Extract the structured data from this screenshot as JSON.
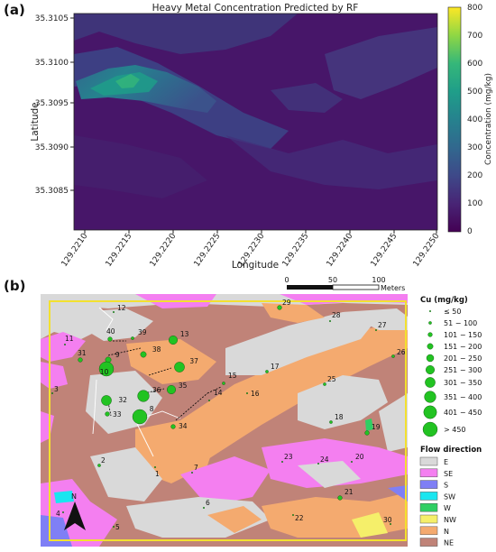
{
  "panel_a": {
    "label": "(a)",
    "title": "Heavy Metal Concentration Predicted by RF",
    "xlabel": "Longitude",
    "ylabel": "Latitude",
    "colorbar_label": "Concentration (mg/kg)",
    "x_ticks": [
      "129.2210",
      "129.2215",
      "129.2220",
      "129.2225",
      "129.2230",
      "129.2235",
      "129.2240",
      "129.2245",
      "129.2250"
    ],
    "y_ticks": [
      "35.3105",
      "35.3100",
      "35.3095",
      "35.3090",
      "35.3085"
    ],
    "colorbar_ticks": [
      "800",
      "700",
      "600",
      "500",
      "400",
      "300",
      "200",
      "100",
      "0"
    ],
    "colorbar_range": [
      0,
      800
    ],
    "colormap": "viridis"
  },
  "panel_b": {
    "label": "(b)",
    "scalebar": {
      "ticks": [
        "0",
        "50",
        "100"
      ],
      "unit": "Meters"
    },
    "north_label": "N",
    "cu_legend": {
      "title": "Cu (mg/kg)",
      "items": [
        "≤ 50",
        "51 − 100",
        "101 − 150",
        "151 − 200",
        "201 − 250",
        "251 − 300",
        "301 − 350",
        "351 − 400",
        "401 − 450",
        "> 450"
      ]
    },
    "flow_legend": {
      "title": "Flow direction",
      "items": [
        {
          "label": "E",
          "color": "#d9d9d9"
        },
        {
          "label": "SE",
          "color": "#f47ff0"
        },
        {
          "label": "S",
          "color": "#7f7ff5"
        },
        {
          "label": "SW",
          "color": "#19e6f0"
        },
        {
          "label": "W",
          "color": "#2fcf63"
        },
        {
          "label": "NW",
          "color": "#f5ef6a"
        },
        {
          "label": "N",
          "color": "#f4aa6f"
        },
        {
          "label": "NE",
          "color": "#c08378"
        }
      ]
    },
    "points": [
      {
        "id": "1",
        "cls": 0
      },
      {
        "id": "2",
        "cls": 1
      },
      {
        "id": "3",
        "cls": 0
      },
      {
        "id": "4",
        "cls": 0
      },
      {
        "id": "5",
        "cls": 0
      },
      {
        "id": "6",
        "cls": 0
      },
      {
        "id": "7",
        "cls": 0
      },
      {
        "id": "8",
        "cls": 9
      },
      {
        "id": "9",
        "cls": 3
      },
      {
        "id": "10",
        "cls": 9
      },
      {
        "id": "11",
        "cls": 0
      },
      {
        "id": "12",
        "cls": 0
      },
      {
        "id": "13",
        "cls": 5
      },
      {
        "id": "14",
        "cls": 0
      },
      {
        "id": "15",
        "cls": 1
      },
      {
        "id": "16",
        "cls": 0
      },
      {
        "id": "17",
        "cls": 1
      },
      {
        "id": "18",
        "cls": 1
      },
      {
        "id": "19",
        "cls": 2
      },
      {
        "id": "20",
        "cls": 0
      },
      {
        "id": "21",
        "cls": 2
      },
      {
        "id": "22",
        "cls": 0
      },
      {
        "id": "23",
        "cls": 0
      },
      {
        "id": "24",
        "cls": 0
      },
      {
        "id": "25",
        "cls": 1
      },
      {
        "id": "26",
        "cls": 1
      },
      {
        "id": "27",
        "cls": 0
      },
      {
        "id": "28",
        "cls": 0
      },
      {
        "id": "29",
        "cls": 2
      },
      {
        "id": "30",
        "cls": 0
      },
      {
        "id": "31",
        "cls": 2
      },
      {
        "id": "32",
        "cls": 6
      },
      {
        "id": "33",
        "cls": 2
      },
      {
        "id": "34",
        "cls": 2
      },
      {
        "id": "35",
        "cls": 5
      },
      {
        "id": "36",
        "cls": 7
      },
      {
        "id": "37",
        "cls": 6
      },
      {
        "id": "38",
        "cls": 3
      },
      {
        "id": "39",
        "cls": 1
      },
      {
        "id": "40",
        "cls": 2
      }
    ]
  }
}
